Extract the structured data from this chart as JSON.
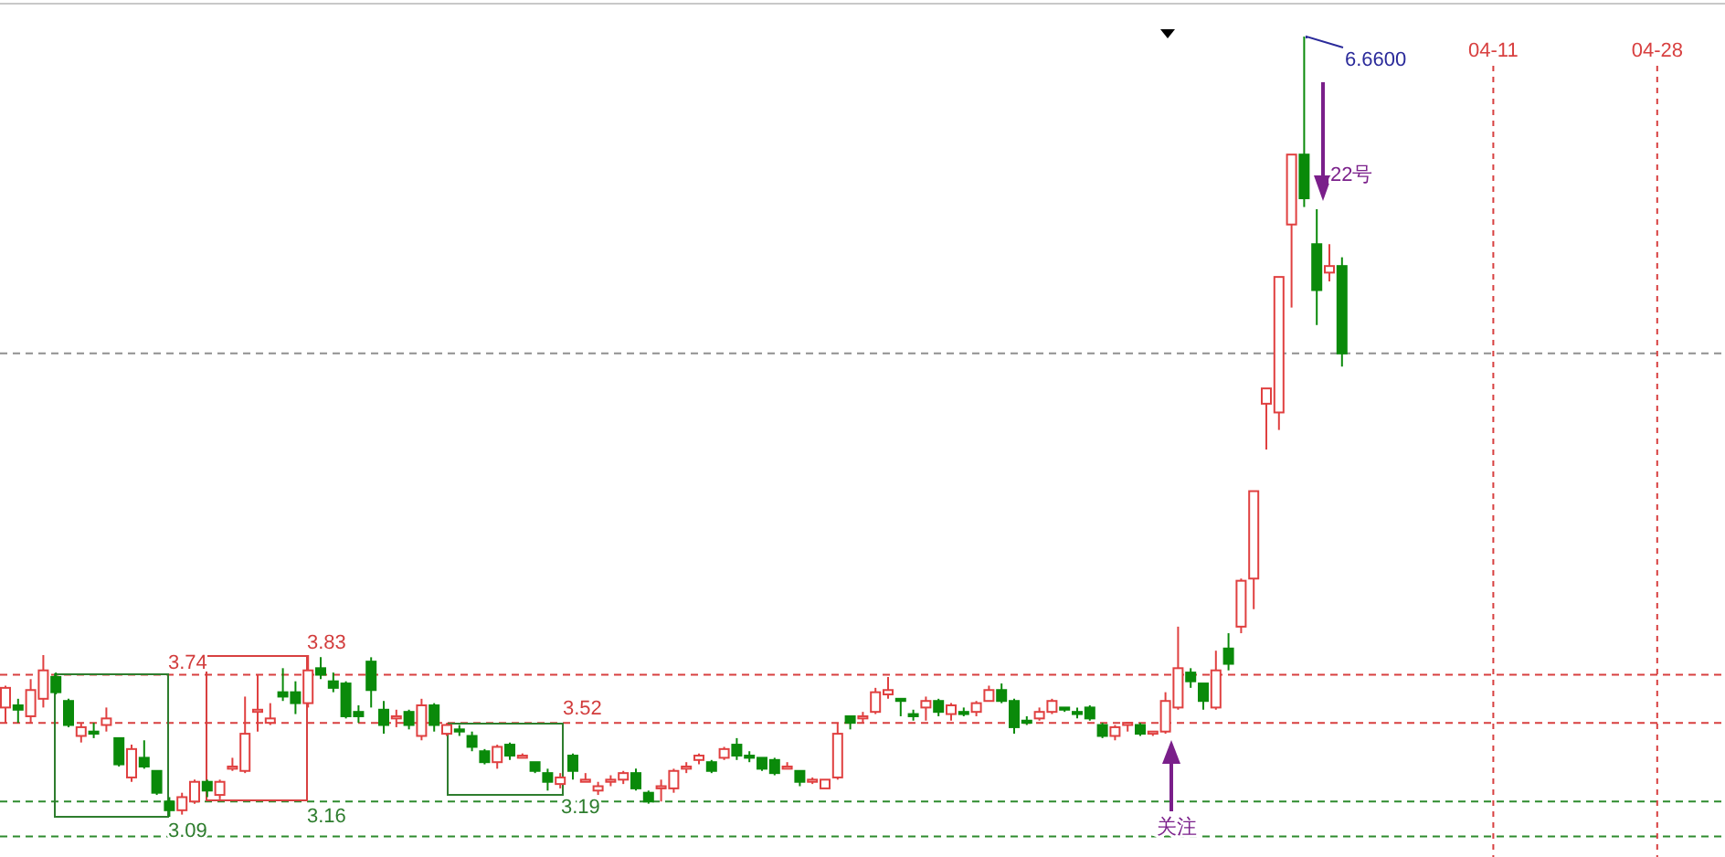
{
  "chart_data": {
    "type": "candlestick",
    "categories": [
      null,
      null,
      null,
      null,
      null,
      null,
      null,
      null,
      null,
      null,
      null,
      null,
      null,
      null,
      null,
      null,
      null,
      null,
      null,
      null,
      null,
      null,
      null,
      null,
      null,
      null,
      null,
      null,
      null,
      null,
      null,
      null,
      null,
      null,
      null,
      null,
      null,
      null,
      null,
      null,
      null,
      null,
      null,
      null,
      null,
      null,
      null,
      null,
      null,
      null,
      null,
      null,
      null,
      null,
      null,
      null,
      null,
      null,
      null,
      null,
      null,
      null,
      null,
      null,
      null,
      null,
      null,
      null,
      null,
      null,
      null,
      null,
      null,
      null,
      null,
      null,
      null,
      null,
      null,
      null,
      null,
      null,
      null,
      null,
      null,
      null,
      null,
      null,
      null,
      null,
      null,
      null,
      null,
      null,
      null,
      null,
      null,
      null,
      null,
      null,
      null,
      null,
      null,
      null,
      null,
      null,
      null,
      null,
      null,
      null,
      null,
      null,
      null,
      null,
      null,
      null,
      null,
      null,
      "04-11",
      null,
      null,
      null,
      null,
      null,
      null,
      null,
      null,
      null,
      null,
      null,
      null,
      "04-28",
      null,
      null,
      null,
      null,
      null
    ],
    "ohlc": [
      [
        3.59,
        3.69,
        3.52,
        3.68
      ],
      [
        3.6,
        3.63,
        3.52,
        3.58
      ],
      [
        3.55,
        3.72,
        3.52,
        3.67
      ],
      [
        3.63,
        3.83,
        3.59,
        3.76
      ],
      [
        3.73,
        3.75,
        3.65,
        3.66
      ],
      [
        3.62,
        3.63,
        3.5,
        3.51
      ],
      [
        3.46,
        3.52,
        3.43,
        3.5
      ],
      [
        3.48,
        3.52,
        3.45,
        3.47
      ],
      [
        3.51,
        3.59,
        3.48,
        3.54
      ],
      [
        3.45,
        3.45,
        3.32,
        3.33
      ],
      [
        3.27,
        3.42,
        3.25,
        3.4
      ],
      [
        3.36,
        3.44,
        3.31,
        3.32
      ],
      [
        3.3,
        3.3,
        3.19,
        3.2
      ],
      [
        3.16,
        3.18,
        3.09,
        3.12
      ],
      [
        3.12,
        3.2,
        3.1,
        3.18
      ],
      [
        3.16,
        3.26,
        3.15,
        3.25
      ],
      [
        3.25,
        3.26,
        3.18,
        3.21
      ],
      [
        3.19,
        3.26,
        3.17,
        3.25
      ],
      [
        3.31,
        3.36,
        3.3,
        3.32
      ],
      [
        3.3,
        3.64,
        3.29,
        3.47
      ],
      [
        3.57,
        3.74,
        3.48,
        3.58
      ],
      [
        3.52,
        3.61,
        3.51,
        3.54
      ],
      [
        3.66,
        3.77,
        3.62,
        3.64
      ],
      [
        3.66,
        3.71,
        3.56,
        3.61
      ],
      [
        3.61,
        3.83,
        3.59,
        3.76
      ],
      [
        3.77,
        3.82,
        3.72,
        3.74
      ],
      [
        3.71,
        3.75,
        3.66,
        3.68
      ],
      [
        3.7,
        3.71,
        3.54,
        3.55
      ],
      [
        3.57,
        3.6,
        3.52,
        3.55
      ],
      [
        3.8,
        3.82,
        3.59,
        3.67
      ],
      [
        3.58,
        3.62,
        3.47,
        3.51
      ],
      [
        3.54,
        3.58,
        3.5,
        3.55
      ],
      [
        3.57,
        3.58,
        3.49,
        3.51
      ],
      [
        3.46,
        3.63,
        3.44,
        3.6
      ],
      [
        3.6,
        3.61,
        3.48,
        3.51
      ],
      [
        3.47,
        3.52,
        3.46,
        3.51
      ],
      [
        3.49,
        3.51,
        3.46,
        3.48
      ],
      [
        3.46,
        3.48,
        3.39,
        3.41
      ],
      [
        3.39,
        3.4,
        3.33,
        3.34
      ],
      [
        3.34,
        3.42,
        3.31,
        3.41
      ],
      [
        3.42,
        3.43,
        3.35,
        3.37
      ],
      [
        3.36,
        3.38,
        3.36,
        3.37
      ],
      [
        3.34,
        3.34,
        3.29,
        3.3
      ],
      [
        3.29,
        3.31,
        3.21,
        3.25
      ],
      [
        3.24,
        3.29,
        3.22,
        3.27
      ],
      [
        3.37,
        3.38,
        3.26,
        3.3
      ],
      [
        3.25,
        3.29,
        3.25,
        3.26
      ],
      [
        3.21,
        3.25,
        3.19,
        3.23
      ],
      [
        3.25,
        3.28,
        3.23,
        3.26
      ],
      [
        3.26,
        3.3,
        3.24,
        3.29
      ],
      [
        3.29,
        3.31,
        3.21,
        3.22
      ],
      [
        3.2,
        3.21,
        3.15,
        3.16
      ],
      [
        3.22,
        3.26,
        3.16,
        3.23
      ],
      [
        3.22,
        3.31,
        3.2,
        3.3
      ],
      [
        3.31,
        3.34,
        3.29,
        3.32
      ],
      [
        3.35,
        3.38,
        3.33,
        3.37
      ],
      [
        3.34,
        3.35,
        3.29,
        3.3
      ],
      [
        3.36,
        3.41,
        3.35,
        3.4
      ],
      [
        3.42,
        3.45,
        3.35,
        3.37
      ],
      [
        3.37,
        3.39,
        3.34,
        3.36
      ],
      [
        3.36,
        3.36,
        3.3,
        3.31
      ],
      [
        3.35,
        3.36,
        3.28,
        3.29
      ],
      [
        3.31,
        3.34,
        3.31,
        3.32
      ],
      [
        3.3,
        3.3,
        3.23,
        3.25
      ],
      [
        3.25,
        3.27,
        3.24,
        3.26
      ],
      [
        3.22,
        3.26,
        3.22,
        3.26
      ],
      [
        3.27,
        3.52,
        3.26,
        3.47
      ],
      [
        3.55,
        3.55,
        3.49,
        3.52
      ],
      [
        3.54,
        3.57,
        3.52,
        3.55
      ],
      [
        3.57,
        3.68,
        3.56,
        3.66
      ],
      [
        3.65,
        3.73,
        3.63,
        3.67
      ],
      [
        3.63,
        3.63,
        3.55,
        3.62
      ],
      [
        3.56,
        3.58,
        3.53,
        3.55
      ],
      [
        3.59,
        3.64,
        3.53,
        3.62
      ],
      [
        3.62,
        3.63,
        3.55,
        3.57
      ],
      [
        3.56,
        3.61,
        3.53,
        3.6
      ],
      [
        3.57,
        3.59,
        3.55,
        3.56
      ],
      [
        3.57,
        3.62,
        3.55,
        3.61
      ],
      [
        3.62,
        3.69,
        3.62,
        3.67
      ],
      [
        3.67,
        3.7,
        3.61,
        3.62
      ],
      [
        3.62,
        3.63,
        3.47,
        3.5
      ],
      [
        3.53,
        3.55,
        3.51,
        3.52
      ],
      [
        3.54,
        3.59,
        3.53,
        3.57
      ],
      [
        3.57,
        3.63,
        3.56,
        3.62
      ],
      [
        3.59,
        3.59,
        3.57,
        3.58
      ],
      [
        3.57,
        3.59,
        3.54,
        3.56
      ],
      [
        3.59,
        3.6,
        3.53,
        3.54
      ],
      [
        3.51,
        3.52,
        3.45,
        3.46
      ],
      [
        3.46,
        3.51,
        3.44,
        3.5
      ],
      [
        3.51,
        3.52,
        3.48,
        3.52
      ],
      [
        3.51,
        3.52,
        3.46,
        3.47
      ],
      [
        3.47,
        3.48,
        3.46,
        3.48
      ],
      [
        3.48,
        3.66,
        3.47,
        3.62
      ],
      [
        3.59,
        3.96,
        3.58,
        3.77
      ],
      [
        3.75,
        3.77,
        3.68,
        3.71
      ],
      [
        3.7,
        3.7,
        3.58,
        3.62
      ],
      [
        3.59,
        3.85,
        3.58,
        3.76
      ],
      [
        3.86,
        3.93,
        3.76,
        3.79
      ],
      [
        3.96,
        4.18,
        3.93,
        4.17
      ],
      [
        4.18,
        4.58,
        4.04,
        4.58
      ],
      [
        4.98,
        5.05,
        4.77,
        5.05
      ],
      [
        4.94,
        5.56,
        4.86,
        5.56
      ],
      [
        5.8,
        6.12,
        5.42,
        6.12
      ],
      [
        6.12,
        6.66,
        5.88,
        5.92
      ],
      [
        5.71,
        5.87,
        5.34,
        5.5
      ],
      [
        5.58,
        5.71,
        5.54,
        5.61
      ],
      [
        5.61,
        5.65,
        5.15,
        5.21
      ],
      null,
      null,
      null,
      null,
      null,
      null,
      null,
      null,
      null,
      null,
      null,
      null,
      null,
      null,
      null,
      null,
      null,
      null,
      null,
      null,
      null,
      null,
      null,
      null,
      null,
      null,
      null,
      null,
      null,
      null
    ],
    "colors": [
      "#e04040",
      "#0a8a0a",
      "#e04040",
      "#e04040",
      "#0a8a0a",
      "#0a8a0a",
      "#e04040",
      "#0a8a0a",
      "#e04040",
      "#0a8a0a",
      "#e04040",
      "#0a8a0a",
      "#0a8a0a",
      "#0a8a0a",
      "#e04040",
      "#e04040",
      "#0a8a0a",
      "#e04040",
      "#e04040",
      "#e04040",
      "#e04040",
      "#e04040",
      "#0a8a0a",
      "#0a8a0a",
      "#e04040",
      "#0a8a0a",
      "#0a8a0a",
      "#0a8a0a",
      "#0a8a0a",
      "#0a8a0a",
      "#0a8a0a",
      "#e04040",
      "#0a8a0a",
      "#e04040",
      "#0a8a0a",
      "#e04040",
      "#0a8a0a",
      "#0a8a0a",
      "#0a8a0a",
      "#e04040",
      "#0a8a0a",
      "#e04040",
      "#0a8a0a",
      "#0a8a0a",
      "#e04040",
      "#0a8a0a",
      "#e04040",
      "#e04040",
      "#e04040",
      "#e04040",
      "#0a8a0a",
      "#0a8a0a",
      "#e04040",
      "#e04040",
      "#e04040",
      "#e04040",
      "#0a8a0a",
      "#e04040",
      "#0a8a0a",
      "#0a8a0a",
      "#0a8a0a",
      "#0a8a0a",
      "#e04040",
      "#0a8a0a",
      "#e04040",
      "#e04040",
      "#e04040",
      "#0a8a0a",
      "#e04040",
      "#e04040",
      "#e04040",
      "#0a8a0a",
      "#0a8a0a",
      "#e04040",
      "#0a8a0a",
      "#e04040",
      "#0a8a0a",
      "#e04040",
      "#e04040",
      "#0a8a0a",
      "#0a8a0a",
      "#0a8a0a",
      "#e04040",
      "#e04040",
      "#0a8a0a",
      "#0a8a0a",
      "#0a8a0a",
      "#0a8a0a",
      "#e04040",
      "#e04040",
      "#0a8a0a",
      "#e04040",
      "#e04040",
      "#e04040",
      "#0a8a0a",
      "#0a8a0a",
      "#e04040",
      "#0a8a0a",
      "#e04040",
      "#e04040",
      "#e04040",
      "#e04040",
      "#e04040",
      "#0a8a0a",
      "#0a8a0a",
      "#e04040",
      "#0a8a0a",
      null,
      null,
      null,
      null,
      null,
      null,
      null,
      null,
      null,
      null,
      null,
      null,
      null,
      null,
      null,
      null,
      null,
      null,
      null,
      null,
      null,
      null,
      null,
      null,
      null,
      null,
      null,
      null,
      null,
      null
    ],
    "ref_lines": [
      {
        "axis": "y",
        "value": 3.74,
        "color": "#d84040",
        "line_style": "dashed"
      },
      {
        "axis": "y",
        "value": 3.52,
        "color": "#d84040",
        "line_style": "dashed"
      },
      {
        "axis": "y",
        "value": 3.16,
        "color": "#2e8b2e",
        "line_style": "dashed"
      },
      {
        "axis": "y",
        "value": 3.0,
        "color": "#2e8b2e",
        "line_style": "dashed"
      },
      {
        "axis": "y",
        "value": 5.21,
        "color": "#909090",
        "line_style": "dashed"
      }
    ],
    "annotations": [
      "3.74",
      "3.83",
      "3.52",
      "3.16",
      "3.19",
      "3.09",
      "6.6600",
      "22号",
      "关注"
    ]
  }
}
